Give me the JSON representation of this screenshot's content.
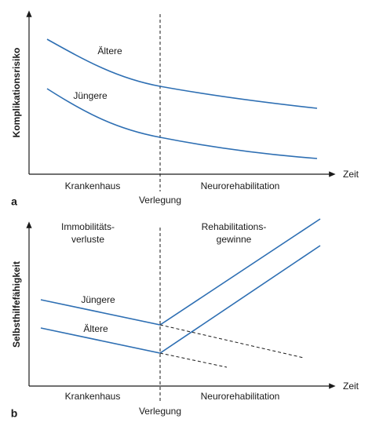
{
  "panels": [
    {
      "label": "a",
      "y_label": "Komplikationsrisiko",
      "x_label": "Zeit",
      "phase_left": "Krankenhaus",
      "phase_right": "Neurorehabilitation",
      "transition": "Verlegung",
      "curve_labels": [
        "Ältere",
        "Jüngere"
      ]
    },
    {
      "label": "b",
      "y_label": "Selbsthilfefähigkeit",
      "x_label": "Zeit",
      "phase_left": "Krankenhaus",
      "phase_right": "Neurorehabilitation",
      "transition": "Verlegung",
      "curve_labels": [
        "Jüngere",
        "Ältere"
      ],
      "top_left": [
        "Immobilitäts-",
        "verluste"
      ],
      "top_right": [
        "Rehabilitations-",
        "gewinne"
      ]
    }
  ]
}
